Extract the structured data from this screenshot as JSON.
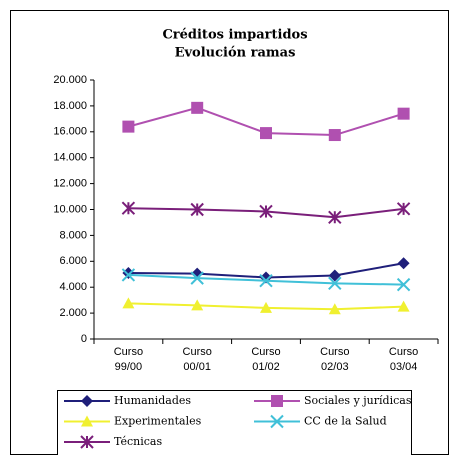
{
  "chart_data": {
    "type": "line",
    "title": "Créditos impartidos",
    "subtitle": "Evolución ramas",
    "categories": [
      "Curso 99/00",
      "Curso 00/01",
      "Curso 01/02",
      "Curso 02/03",
      "Curso 03/04"
    ],
    "series": [
      {
        "name": "Humanidades",
        "color": "#1f1f7a",
        "marker": "diamond",
        "values": [
          5100,
          5050,
          4750,
          4900,
          5850
        ]
      },
      {
        "name": "Sociales y jurídicas",
        "color": "#b050b0",
        "marker": "square",
        "values": [
          16400,
          17850,
          15900,
          15750,
          17400
        ]
      },
      {
        "name": "Experimentales",
        "color": "#f0f030",
        "marker": "triangle",
        "values": [
          2750,
          2600,
          2400,
          2300,
          2500
        ]
      },
      {
        "name": "CC de la Salud",
        "color": "#40c0d8",
        "marker": "x",
        "values": [
          4950,
          4700,
          4500,
          4300,
          4200
        ]
      },
      {
        "name": "Técnicas",
        "color": "#7a1f7a",
        "marker": "star",
        "values": [
          10100,
          10000,
          9850,
          9400,
          10050
        ]
      }
    ],
    "ylim": [
      0,
      20000
    ],
    "yticks": [
      0,
      {
        "value": 2000,
        "label": "2.000"
      },
      {
        "value": 4000,
        "label": "4.000"
      },
      {
        "value": 6000,
        "label": "6.000"
      },
      {
        "value": 8000,
        "label": "8.000"
      },
      {
        "value": 10000,
        "label": "10.000"
      },
      {
        "value": 12000,
        "label": "12.000"
      },
      {
        "value": 14000,
        "label": "14.000"
      },
      {
        "value": 16000,
        "label": "16.000"
      },
      {
        "value": 18000,
        "label": "18.000"
      },
      {
        "value": 20000,
        "label": "20.000"
      }
    ],
    "grid": false,
    "legend": "bottom"
  }
}
